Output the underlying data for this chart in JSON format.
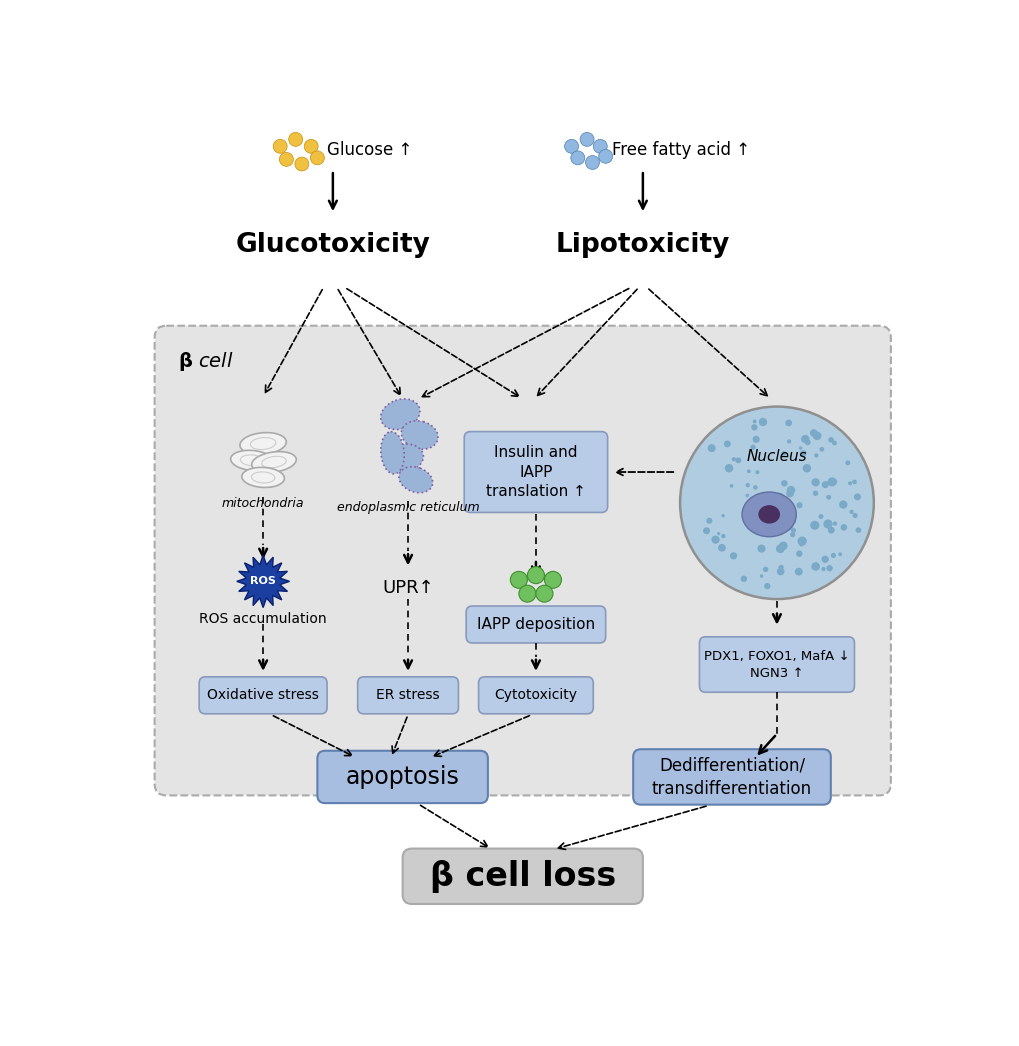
{
  "glucose_label": "Glucose ↑",
  "ffa_label": "Free fatty acid ↑",
  "glucotoxicity_label": "Glucotoxicity",
  "lipotoxicity_label": "Lipotoxicity",
  "mitochondria_label": "mitochondria",
  "er_label": "endoplasmic reticulum",
  "insulin_iapp_label": "Insulin and\nIAPP\ntranslation ↑",
  "nucleus_label": "Nucleus",
  "ros_label": "ROS accumulation",
  "upr_label": "UPR↑",
  "iapp_dep_label": "IAPP deposition",
  "ox_stress_label": "Oxidative stress",
  "er_stress_label": "ER stress",
  "cyto_label": "Cytotoxicity",
  "pdx1_label": "PDX1, FOXO1, MafA ↓\nNGN3 ↑",
  "apoptosis_label": "apoptosis",
  "dediff_label": "Dedifferentiation/\ntransdifferentiation",
  "beta_cell_loss_label": "β cell loss",
  "beta_cell_label": "β cell",
  "cell_bg": "#e4e4e4",
  "box_blue_light": "#b8cce8",
  "box_blue_medium": "#a8bee0",
  "box_gray": "#cccccc",
  "glucose_dot_color": "#f0c040",
  "ffa_dot_color": "#90b8e0",
  "nucleus_fill": "#a8c8e0",
  "ros_star_color": "#1a3fa0"
}
